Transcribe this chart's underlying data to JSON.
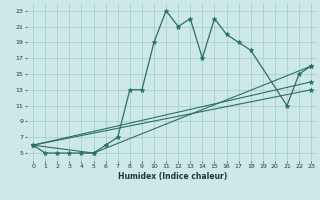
{
  "xlabel": "Humidex (Indice chaleur)",
  "background_color": "#cce8e8",
  "grid_color": "#aacece",
  "line_color": "#2d6e65",
  "xlim": [
    -0.5,
    23.5
  ],
  "ylim": [
    4,
    24
  ],
  "yticks": [
    5,
    7,
    9,
    11,
    13,
    15,
    17,
    19,
    21,
    23
  ],
  "xticks": [
    0,
    1,
    2,
    3,
    4,
    5,
    6,
    7,
    8,
    9,
    10,
    11,
    12,
    13,
    14,
    15,
    16,
    17,
    18,
    19,
    20,
    21,
    22,
    23
  ],
  "series": [
    {
      "x": [
        0,
        1,
        2,
        3,
        4,
        5,
        6,
        7,
        8,
        9,
        10,
        11,
        12,
        13,
        14,
        15,
        16,
        17,
        18,
        21,
        22,
        23
      ],
      "y": [
        6,
        5,
        5,
        5,
        5,
        5,
        6,
        7,
        13,
        13,
        19,
        23,
        21,
        22,
        17,
        22,
        20,
        19,
        18,
        11,
        15,
        16
      ]
    },
    {
      "x": [
        0,
        5,
        23
      ],
      "y": [
        6,
        5,
        16
      ]
    },
    {
      "x": [
        0,
        23
      ],
      "y": [
        6,
        14
      ]
    },
    {
      "x": [
        0,
        23
      ],
      "y": [
        6,
        13
      ]
    }
  ]
}
